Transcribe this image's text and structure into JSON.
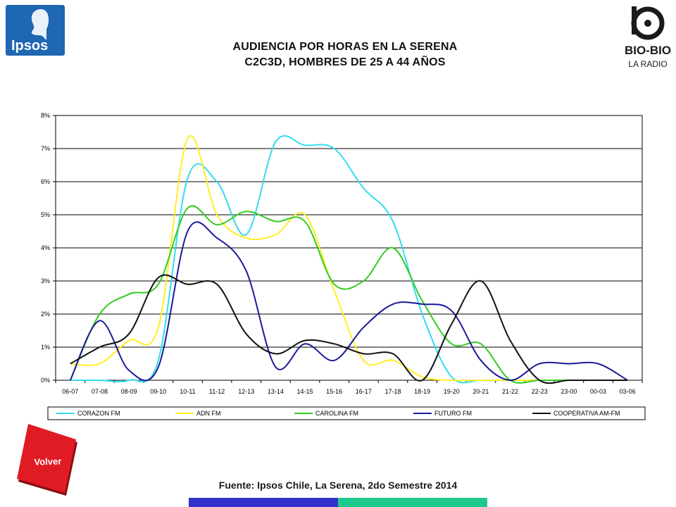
{
  "header": {
    "title_line1": "AUDIENCIA POR HORAS EN LA SERENA",
    "title_line2": "C2C3D, HOMBRES DE 25 A 44 AÑOS"
  },
  "logos": {
    "ipsos_text": "Ipsos",
    "ipsos_color": "#1f66b3",
    "biobio_text": "BIO-BIO",
    "biobio_sub": "LA RADIO"
  },
  "footer": {
    "source": "Fuente: Ipsos Chile, La Serena, 2do Semestre 2014",
    "bar_colors": [
      "#3333cc",
      "#1ec98c"
    ]
  },
  "nav": {
    "volver_label": "Volver",
    "volver_color": "#e01b24"
  },
  "chart_data": {
    "type": "line",
    "title": "",
    "xlabel": "",
    "ylabel": "",
    "ylim": [
      0,
      8
    ],
    "y_ticks": [
      "0%",
      "1%",
      "2%",
      "3%",
      "4%",
      "5%",
      "6%",
      "7%",
      "8%"
    ],
    "categories": [
      "06-07",
      "07-08",
      "08-09",
      "09-10",
      "10-11",
      "11-12",
      "12-13",
      "13-14",
      "14-15",
      "15-16",
      "16-17",
      "17-18",
      "18-19",
      "19-20",
      "20-21",
      "21-22",
      "22-23",
      "23-00",
      "00-03",
      "03-06"
    ],
    "grid": true,
    "legend_position": "bottom",
    "series": [
      {
        "name": "CORAZON FM",
        "color": "#33ddee",
        "values": [
          0,
          0,
          0,
          0.6,
          6.1,
          6.0,
          4.4,
          7.2,
          7.1,
          7.0,
          5.8,
          4.8,
          2.0,
          0.1,
          0,
          0,
          0,
          0,
          0,
          0
        ]
      },
      {
        "name": "ADN FM",
        "color": "#ffee22",
        "values": [
          0.5,
          0.5,
          1.2,
          1.6,
          7.3,
          5.0,
          4.3,
          4.4,
          5.0,
          2.7,
          0.6,
          0.6,
          0.1,
          0,
          0,
          0,
          0,
          0,
          0,
          0
        ]
      },
      {
        "name": "CAROLINA FM",
        "color": "#33cc22",
        "values": [
          0,
          2.0,
          2.6,
          2.9,
          5.2,
          4.7,
          5.1,
          4.8,
          4.8,
          2.9,
          3.0,
          4.0,
          2.4,
          1.1,
          1.1,
          0,
          0,
          0,
          0,
          0
        ]
      },
      {
        "name": "FUTURO FM",
        "color": "#1a1a99",
        "values": [
          0,
          1.8,
          0.3,
          0.4,
          4.5,
          4.3,
          3.3,
          0.4,
          1.1,
          0.6,
          1.6,
          2.3,
          2.3,
          2.1,
          0.6,
          0,
          0.5,
          0.5,
          0.5,
          0
        ]
      },
      {
        "name": "COOPERATIVA AM-FM",
        "color": "#111111",
        "values": [
          0.5,
          1.0,
          1.4,
          3.1,
          2.9,
          2.9,
          1.4,
          0.8,
          1.2,
          1.1,
          0.8,
          0.8,
          0,
          1.7,
          3.0,
          1.2,
          0,
          0,
          0,
          0
        ]
      }
    ]
  }
}
